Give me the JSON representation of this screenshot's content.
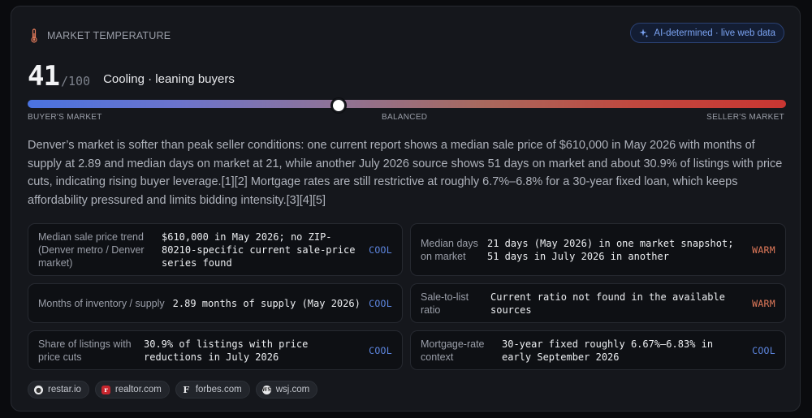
{
  "header": {
    "title": "MARKET TEMPERATURE",
    "icon": "thermometer-icon",
    "ai_badge": "AI-determined · live web data",
    "ai_badge_icon": "sparkle-icon"
  },
  "score": {
    "value": "41",
    "max": "/100",
    "label": "Cooling · leaning buyers",
    "position_fraction": 0.41
  },
  "scale": {
    "left": "BUYER'S MARKET",
    "center": "BALANCED",
    "right": "SELLER'S MARKET"
  },
  "summary": "Denver’s market is softer than peak seller conditions: one current report shows a median sale price of $610,000 in May 2026 with months of supply at 2.89 and median days on market at 21, while another July 2026 source shows 51 days on market and about 30.9% of listings with price cuts, indicating rising buyer leverage.[1][2] Mortgage rates are still restrictive at roughly 6.7%–6.8% for a 30-year fixed loan, which keeps affordability pressured and limits bidding intensity.[3][4][5]",
  "metrics": [
    {
      "label": "Median sale price trend (Denver metro / Denver market)",
      "value": "$610,000 in May 2026; no ZIP-80210-specific current sale-price series found",
      "tag": "COOL"
    },
    {
      "label": "Median days on market",
      "value": "21 days (May 2026) in one market snapshot; 51 days in July 2026 in another",
      "tag": "WARM"
    },
    {
      "label": "Months of inventory / supply",
      "value": "2.89 months of supply (May 2026)",
      "tag": "COOL"
    },
    {
      "label": "Sale-to-list ratio",
      "value": "Current ratio not found in the available sources",
      "tag": "WARM"
    },
    {
      "label": "Share of listings with price cuts",
      "value": "30.9% of listings with price reductions in July 2026",
      "tag": "COOL"
    },
    {
      "label": "Mortgage-rate context",
      "value": "30-year fixed roughly 6.67%–6.83% in early September 2026",
      "tag": "COOL"
    }
  ],
  "colors": {
    "cool": "#5d86e0",
    "warm": "#e0795a",
    "accent": "#7ba3f2"
  },
  "sources": [
    {
      "name": "restar.io",
      "icon": "restar-favicon"
    },
    {
      "name": "realtor.com",
      "icon": "realtor-favicon"
    },
    {
      "name": "forbes.com",
      "icon": "forbes-favicon"
    },
    {
      "name": "wsj.com",
      "icon": "wsj-favicon"
    }
  ]
}
